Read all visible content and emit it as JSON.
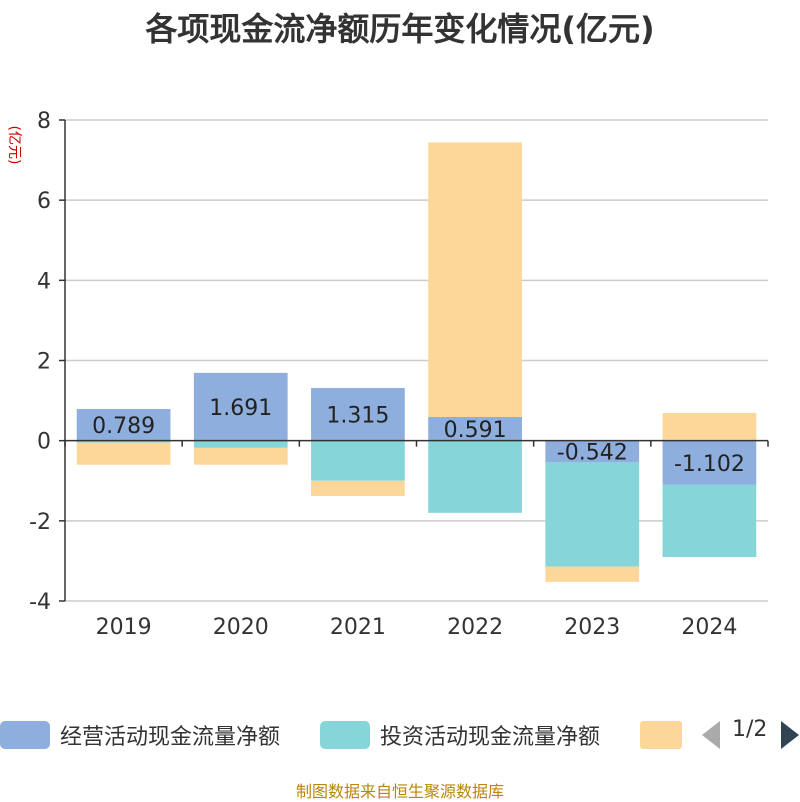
{
  "chart_data": {
    "type": "bar",
    "stacked": true,
    "title": "各项现金流净额历年变化情况(亿元)",
    "ylabel": "(亿元)",
    "categories": [
      "2019",
      "2020",
      "2021",
      "2022",
      "2023",
      "2024"
    ],
    "ylim": [
      -4,
      8
    ],
    "yticks": [
      -4,
      -2,
      0,
      2,
      4,
      6,
      8
    ],
    "grid": true,
    "series": [
      {
        "name": "经营活动现金流量净额",
        "color": "#8eaedd",
        "values": [
          0.789,
          1.691,
          1.315,
          0.591,
          -0.542,
          -1.102
        ]
      },
      {
        "name": "投资活动现金流量净额",
        "color": "#86d5d8",
        "values": [
          -0.05,
          -0.18,
          -1.0,
          -1.8,
          -2.6,
          -1.8
        ]
      },
      {
        "name": "",
        "color": "#fdd799",
        "values": [
          -0.55,
          -0.42,
          -0.38,
          6.85,
          -0.38,
          0.69
        ]
      }
    ],
    "data_labels": [
      "0.789",
      "1.691",
      "1.315",
      "0.591",
      "-0.542",
      "-1.102"
    ]
  },
  "legend": {
    "pager": "1/2"
  },
  "source": "制图数据来自恒生聚源数据库"
}
